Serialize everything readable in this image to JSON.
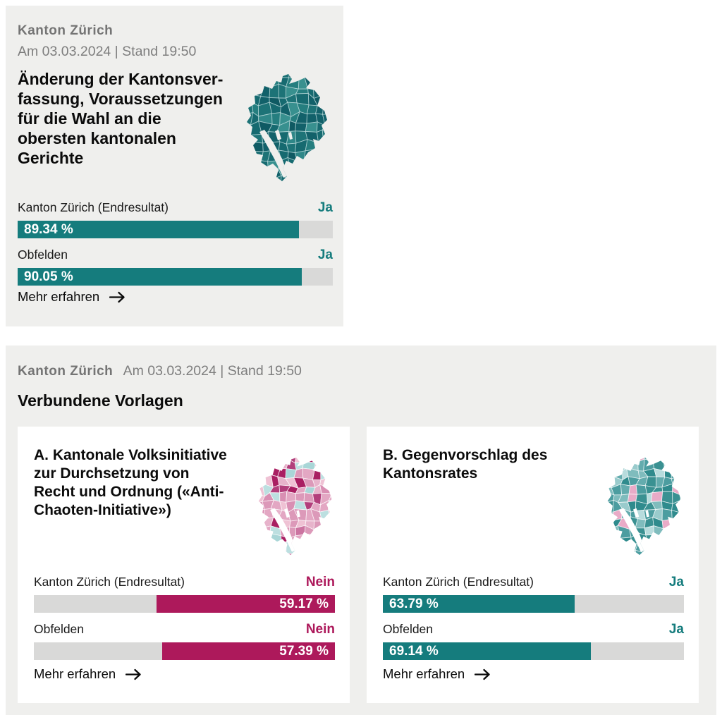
{
  "colors": {
    "teal": "#157C7D",
    "magenta": "#AD195B",
    "bar_track": "#D9D9D8",
    "panel_bg": "#EFEFED",
    "card_bg": "#FFFFFF",
    "kicker_gray": "#747474",
    "date_gray": "#7E7E7E",
    "bar_text_white": "#FFFFFF"
  },
  "maps": {
    "main": {
      "lake": "#EFEFED",
      "border": "rgba(205,230,230,0.65)",
      "palette": [
        "#166A70",
        "#12616A",
        "#1D7377",
        "#0F5A63",
        "#257E7F",
        "#2F8788",
        "#166A70",
        "#1D7377",
        "#12616A",
        "#38908F",
        "#257E7F",
        "#166A70"
      ]
    },
    "initiative": {
      "lake": "#FFFFFF",
      "border": "rgba(255,255,255,0.8)",
      "palette": [
        "#E3A7C3",
        "#DC99B9",
        "#EFC2D4",
        "#E7B3CB",
        "#D98FB3",
        "#CC74A1",
        "#E3A7C3",
        "#EFC2D4",
        "#B23E7B",
        "#A91F62",
        "#BCDFE0",
        "#A9D6D7",
        "#DC99B9",
        "#E7B3CB",
        "#E3A7C3",
        "#BCDFE0"
      ]
    },
    "counterproposal": {
      "lake": "#FFFFFF",
      "border": "rgba(255,255,255,0.75)",
      "palette": [
        "#2F8B8D",
        "#3A9192",
        "#4C9DA0",
        "#64ACAE",
        "#7FBCBD",
        "#99CBCC",
        "#2F8B8D",
        "#3A9192",
        "#B7DCDD",
        "#4C9DA0",
        "#2F8B8D",
        "#64ACAE",
        "#E9ABC7",
        "#3A9192",
        "#2F8B8D",
        "#7FBCBD"
      ]
    }
  },
  "main_card": {
    "kicker": "Kanton Zürich",
    "dateline": "Am 03.03.2024 | Stand 19:50",
    "title": "Änderung der Kantonsver­fassung, Voraussetzun­gen für die Wahl an die obersten kantonalen Gerichte",
    "results": [
      {
        "label": "Kanton Zürich (Endresultat)",
        "verdict": "Ja",
        "value": 89.34,
        "display": "89.34 %"
      },
      {
        "label": "Obfelden",
        "verdict": "Ja",
        "value": 90.05,
        "display": "90.05 %"
      }
    ],
    "more_label": "Mehr erfahren"
  },
  "related": {
    "kicker": "Kanton Zürich",
    "dateline": "Am 03.03.2024 | Stand 19:50",
    "heading": "Verbundene Vorlagen",
    "cards": [
      {
        "title": "A. Kantonale Volksinitiative zur Durchsetzung von Recht und Ordnung («Anti-Chaoten-Initiative»)",
        "results": [
          {
            "label": "Kanton Zürich (Endresultat)",
            "verdict": "Nein",
            "value": 59.17,
            "display": "59.17 %"
          },
          {
            "label": "Obfelden",
            "verdict": "Nein",
            "value": 57.39,
            "display": "57.39 %"
          }
        ],
        "more_label": "Mehr erfahren"
      },
      {
        "title": "B. Gegenvorschlag des Kantonsrates",
        "results": [
          {
            "label": "Kanton Zürich (Endresultat)",
            "verdict": "Ja",
            "value": 63.79,
            "display": "63.79 %"
          },
          {
            "label": "Obfelden",
            "verdict": "Ja",
            "value": 69.14,
            "display": "69.14 %"
          }
        ],
        "more_label": "Mehr erfahren"
      }
    ]
  }
}
